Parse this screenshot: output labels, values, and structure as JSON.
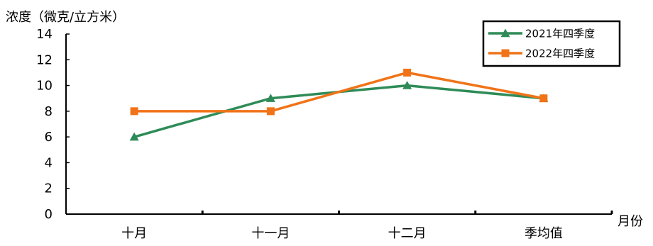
{
  "chart_data": {
    "type": "line",
    "ylabel": "浓度（微克/立方米）",
    "xlabel": "月份",
    "categories": [
      "十月",
      "十一月",
      "十二月",
      "季均值"
    ],
    "ylim": [
      0,
      14
    ],
    "yticks": [
      0,
      2,
      4,
      6,
      8,
      10,
      12,
      14
    ],
    "grid": false,
    "legend_position": "top-right",
    "series": [
      {
        "name": "2021年四季度",
        "values": [
          6,
          9,
          10,
          9
        ],
        "color": "#2e8b57",
        "marker": "triangle"
      },
      {
        "name": "2022年四季度",
        "values": [
          8,
          8,
          11,
          9
        ],
        "color": "#f07318",
        "marker": "square"
      }
    ]
  }
}
